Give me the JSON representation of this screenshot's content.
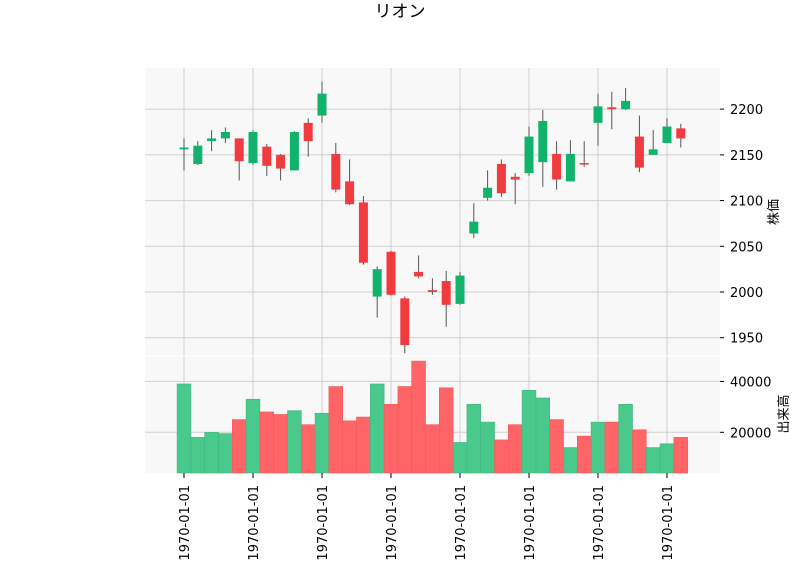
{
  "chart_data": {
    "type": "candlestick",
    "title": "リオン",
    "price_panel": {
      "ylabel": "株価",
      "y_ticks": [
        1950,
        2000,
        2050,
        2100,
        2150,
        2200
      ],
      "ylim": [
        1930,
        2245
      ],
      "grid": true,
      "y_axis_side": "right"
    },
    "volume_panel": {
      "ylabel": "出来高",
      "y_ticks": [
        20000,
        40000
      ],
      "y_tick_labels": [
        "20000",
        "40000"
      ],
      "ylim": [
        4000,
        50000
      ],
      "grid": true,
      "y_axis_side": "right"
    },
    "x_tick_labels": [
      "1970-01-01",
      "1970-01-01",
      "1970-01-01",
      "1970-01-01",
      "1970-01-01",
      "1970-01-01",
      "1970-01-01",
      "1970-01-01"
    ],
    "x_tick_positions": [
      0,
      5,
      10,
      15,
      20,
      25,
      30,
      35
    ],
    "colors": {
      "up": "#10b26c",
      "down": "#f23b3e",
      "up_volume": "#4ac98c",
      "down_volume": "#ff6566",
      "panel_bg": "#f8f8f8",
      "grid": "#d0d0d0"
    },
    "candles": [
      {
        "o": 2156,
        "h": 2168,
        "l": 2133,
        "c": 2158,
        "v": 39000
      },
      {
        "o": 2140,
        "h": 2165,
        "l": 2139,
        "c": 2160,
        "v": 18000
      },
      {
        "o": 2165,
        "h": 2177,
        "l": 2154,
        "c": 2168,
        "v": 20000
      },
      {
        "o": 2168,
        "h": 2180,
        "l": 2163,
        "c": 2175,
        "v": 19500
      },
      {
        "o": 2168,
        "h": 2168,
        "l": 2122,
        "c": 2143,
        "v": 25000
      },
      {
        "o": 2141,
        "h": 2177,
        "l": 2139,
        "c": 2175,
        "v": 33000
      },
      {
        "o": 2159,
        "h": 2162,
        "l": 2127,
        "c": 2138,
        "v": 28000
      },
      {
        "o": 2150,
        "h": 2151,
        "l": 2122,
        "c": 2135,
        "v": 27000
      },
      {
        "o": 2133,
        "h": 2176,
        "l": 2133,
        "c": 2175,
        "v": 28500
      },
      {
        "o": 2185,
        "h": 2190,
        "l": 2148,
        "c": 2165,
        "v": 23000
      },
      {
        "o": 2193,
        "h": 2230,
        "l": 2185,
        "c": 2217,
        "v": 27500
      },
      {
        "o": 2151,
        "h": 2163,
        "l": 2109,
        "c": 2112,
        "v": 38000
      },
      {
        "o": 2121,
        "h": 2145,
        "l": 2095,
        "c": 2096,
        "v": 24500
      },
      {
        "o": 2098,
        "h": 2105,
        "l": 2030,
        "c": 2032,
        "v": 26000
      },
      {
        "o": 1995,
        "h": 2028,
        "l": 1972,
        "c": 2025,
        "v": 39000
      },
      {
        "o": 2044,
        "h": 2045,
        "l": 1996,
        "c": 1997,
        "v": 31000
      },
      {
        "o": 1993,
        "h": 1995,
        "l": 1933,
        "c": 1942,
        "v": 38000
      },
      {
        "o": 2022,
        "h": 2040,
        "l": 2015,
        "c": 2017,
        "v": 48000
      },
      {
        "o": 2002,
        "h": 2015,
        "l": 1997,
        "c": 2000,
        "v": 23000
      },
      {
        "o": 2012,
        "h": 2023,
        "l": 1962,
        "c": 1986,
        "v": 37500
      },
      {
        "o": 1987,
        "h": 2022,
        "l": 1986,
        "c": 2018,
        "v": 16000
      },
      {
        "o": 2064,
        "h": 2097,
        "l": 2059,
        "c": 2077,
        "v": 31000
      },
      {
        "o": 2103,
        "h": 2133,
        "l": 2100,
        "c": 2114,
        "v": 24000
      },
      {
        "o": 2140,
        "h": 2145,
        "l": 2104,
        "c": 2108,
        "v": 17000
      },
      {
        "o": 2126,
        "h": 2130,
        "l": 2096,
        "c": 2123,
        "v": 23000
      },
      {
        "o": 2130,
        "h": 2181,
        "l": 2127,
        "c": 2170,
        "v": 36500
      },
      {
        "o": 2142,
        "h": 2199,
        "l": 2115,
        "c": 2187,
        "v": 33500
      },
      {
        "o": 2151,
        "h": 2165,
        "l": 2112,
        "c": 2123,
        "v": 25000
      },
      {
        "o": 2121,
        "h": 2166,
        "l": 2121,
        "c": 2151,
        "v": 14000
      },
      {
        "o": 2141,
        "h": 2165,
        "l": 2137,
        "c": 2140,
        "v": 18500
      },
      {
        "o": 2185,
        "h": 2217,
        "l": 2160,
        "c": 2203,
        "v": 24000
      },
      {
        "o": 2202,
        "h": 2219,
        "l": 2178,
        "c": 2200,
        "v": 24000
      },
      {
        "o": 2200,
        "h": 2223,
        "l": 2199,
        "c": 2209,
        "v": 31000
      },
      {
        "o": 2170,
        "h": 2193,
        "l": 2131,
        "c": 2136,
        "v": 21000
      },
      {
        "o": 2150,
        "h": 2177,
        "l": 2150,
        "c": 2156,
        "v": 14000
      },
      {
        "o": 2163,
        "h": 2190,
        "l": 2163,
        "c": 2181,
        "v": 15500
      },
      {
        "o": 2179,
        "h": 2184,
        "l": 2158,
        "c": 2168,
        "v": 18000
      }
    ]
  }
}
